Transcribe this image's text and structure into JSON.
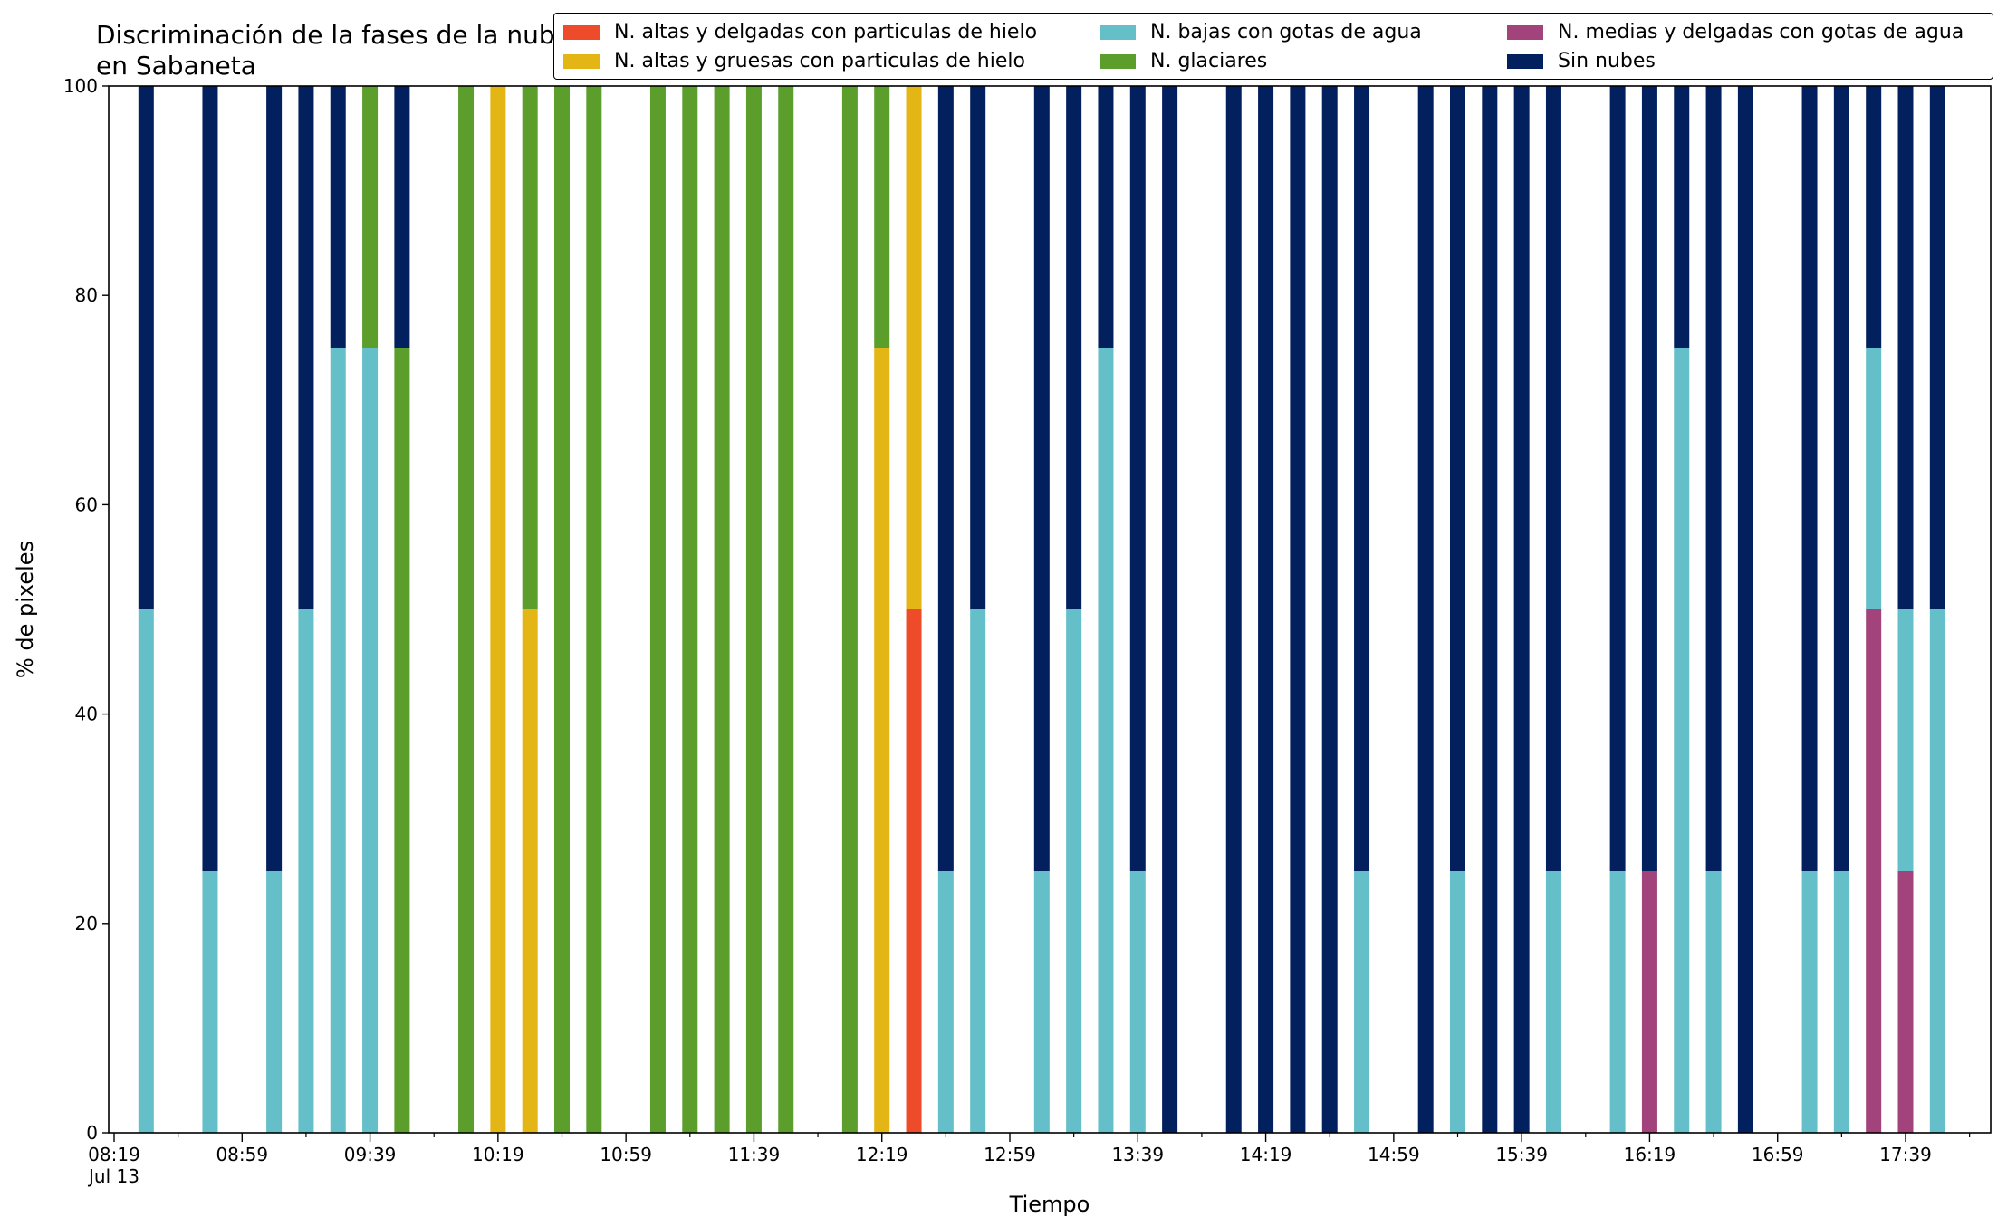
{
  "chart_data": {
    "type": "bar",
    "stacked": true,
    "title": "Discriminación de la fases de la nube en Sabaneta",
    "xlabel": "Tiempo",
    "ylabel": "% de pixeles",
    "ylim": [
      0,
      100
    ],
    "yticks": [
      0,
      20,
      40,
      60,
      80,
      100
    ],
    "xticks": [
      "08:19",
      "08:59",
      "09:39",
      "10:19",
      "10:59",
      "11:39",
      "12:19",
      "12:59",
      "13:39",
      "14:19",
      "14:59",
      "15:39",
      "16:19",
      "16:59",
      "17:39"
    ],
    "date_label": "Jul 13",
    "legend_position": "top-right",
    "grid": false,
    "series": [
      {
        "name": "N. altas y delgadas con particulas de hielo",
        "color": "#ee4b2b"
      },
      {
        "name": "N. altas y gruesas con particulas de hielo",
        "color": "#e3b515"
      },
      {
        "name": "N. bajas con gotas de agua",
        "color": "#64bfc9"
      },
      {
        "name": "N. glaciares",
        "color": "#5c9e2b"
      },
      {
        "name": "N. medias y delgadas con gotas de agua",
        "color": "#a2437b"
      },
      {
        "name": "Sin nubes",
        "color": "#03205e"
      }
    ],
    "stack_order": [
      0,
      1,
      4,
      2,
      3,
      5
    ],
    "bars": [
      {
        "time": "08:29",
        "values": [
          0,
          0,
          50,
          0,
          0,
          50
        ]
      },
      {
        "time": "08:49",
        "values": [
          0,
          0,
          25,
          0,
          0,
          75
        ]
      },
      {
        "time": "09:09",
        "values": [
          0,
          0,
          25,
          0,
          0,
          75
        ]
      },
      {
        "time": "09:19",
        "values": [
          0,
          0,
          50,
          0,
          0,
          50
        ]
      },
      {
        "time": "09:29",
        "values": [
          0,
          0,
          75,
          0,
          0,
          25
        ]
      },
      {
        "time": "09:39",
        "values": [
          0,
          0,
          75,
          25,
          0,
          0
        ]
      },
      {
        "time": "09:49",
        "values": [
          0,
          0,
          0,
          75,
          0,
          25
        ]
      },
      {
        "time": "10:09",
        "values": [
          0,
          0,
          0,
          100,
          0,
          0
        ]
      },
      {
        "time": "10:19",
        "values": [
          0,
          100,
          0,
          0,
          0,
          0
        ]
      },
      {
        "time": "10:29",
        "values": [
          0,
          50,
          0,
          50,
          0,
          0
        ]
      },
      {
        "time": "10:39",
        "values": [
          0,
          0,
          0,
          100,
          0,
          0
        ]
      },
      {
        "time": "10:49",
        "values": [
          0,
          0,
          0,
          100,
          0,
          0
        ]
      },
      {
        "time": "11:09",
        "values": [
          0,
          0,
          0,
          100,
          0,
          0
        ]
      },
      {
        "time": "11:19",
        "values": [
          0,
          0,
          0,
          100,
          0,
          0
        ]
      },
      {
        "time": "11:29",
        "values": [
          0,
          0,
          0,
          100,
          0,
          0
        ]
      },
      {
        "time": "11:39",
        "values": [
          0,
          0,
          0,
          100,
          0,
          0
        ]
      },
      {
        "time": "11:49",
        "values": [
          0,
          0,
          0,
          100,
          0,
          0
        ]
      },
      {
        "time": "12:09",
        "values": [
          0,
          0,
          0,
          100,
          0,
          0
        ]
      },
      {
        "time": "12:19",
        "values": [
          0,
          75,
          0,
          25,
          0,
          0
        ]
      },
      {
        "time": "12:29",
        "values": [
          50,
          50,
          0,
          0,
          0,
          0
        ]
      },
      {
        "time": "12:39",
        "values": [
          0,
          0,
          25,
          0,
          0,
          75
        ]
      },
      {
        "time": "12:49",
        "values": [
          0,
          0,
          50,
          0,
          0,
          50
        ]
      },
      {
        "time": "13:09",
        "values": [
          0,
          0,
          25,
          0,
          0,
          75
        ]
      },
      {
        "time": "13:19",
        "values": [
          0,
          0,
          50,
          0,
          0,
          50
        ]
      },
      {
        "time": "13:29",
        "values": [
          0,
          0,
          75,
          0,
          0,
          25
        ]
      },
      {
        "time": "13:39",
        "values": [
          0,
          0,
          25,
          0,
          0,
          75
        ]
      },
      {
        "time": "13:49",
        "values": [
          0,
          0,
          0,
          0,
          0,
          100
        ]
      },
      {
        "time": "14:09",
        "values": [
          0,
          0,
          0,
          0,
          0,
          100
        ]
      },
      {
        "time": "14:19",
        "values": [
          0,
          0,
          0,
          0,
          0,
          100
        ]
      },
      {
        "time": "14:29",
        "values": [
          0,
          0,
          0,
          0,
          0,
          100
        ]
      },
      {
        "time": "14:39",
        "values": [
          0,
          0,
          0,
          0,
          0,
          100
        ]
      },
      {
        "time": "14:49",
        "values": [
          0,
          0,
          25,
          0,
          0,
          75
        ]
      },
      {
        "time": "15:09",
        "values": [
          0,
          0,
          0,
          0,
          0,
          100
        ]
      },
      {
        "time": "15:19",
        "values": [
          0,
          0,
          25,
          0,
          0,
          75
        ]
      },
      {
        "time": "15:29",
        "values": [
          0,
          0,
          0,
          0,
          0,
          100
        ]
      },
      {
        "time": "15:39",
        "values": [
          0,
          0,
          0,
          0,
          0,
          100
        ]
      },
      {
        "time": "15:49",
        "values": [
          0,
          0,
          25,
          0,
          0,
          75
        ]
      },
      {
        "time": "16:09",
        "values": [
          0,
          0,
          25,
          0,
          0,
          75
        ]
      },
      {
        "time": "16:19",
        "values": [
          0,
          0,
          0,
          0,
          25,
          75
        ]
      },
      {
        "time": "16:29",
        "values": [
          0,
          0,
          75,
          0,
          0,
          25
        ]
      },
      {
        "time": "16:39",
        "values": [
          0,
          0,
          25,
          0,
          0,
          75
        ]
      },
      {
        "time": "16:49",
        "values": [
          0,
          0,
          0,
          0,
          0,
          100
        ]
      },
      {
        "time": "17:09",
        "values": [
          0,
          0,
          25,
          0,
          0,
          75
        ]
      },
      {
        "time": "17:19",
        "values": [
          0,
          0,
          25,
          0,
          0,
          75
        ]
      },
      {
        "time": "17:29",
        "values": [
          0,
          0,
          25,
          0,
          50,
          25
        ]
      },
      {
        "time": "17:39",
        "values": [
          0,
          0,
          25,
          0,
          25,
          50
        ]
      },
      {
        "time": "17:49",
        "values": [
          0,
          0,
          50,
          0,
          0,
          50
        ]
      }
    ]
  }
}
